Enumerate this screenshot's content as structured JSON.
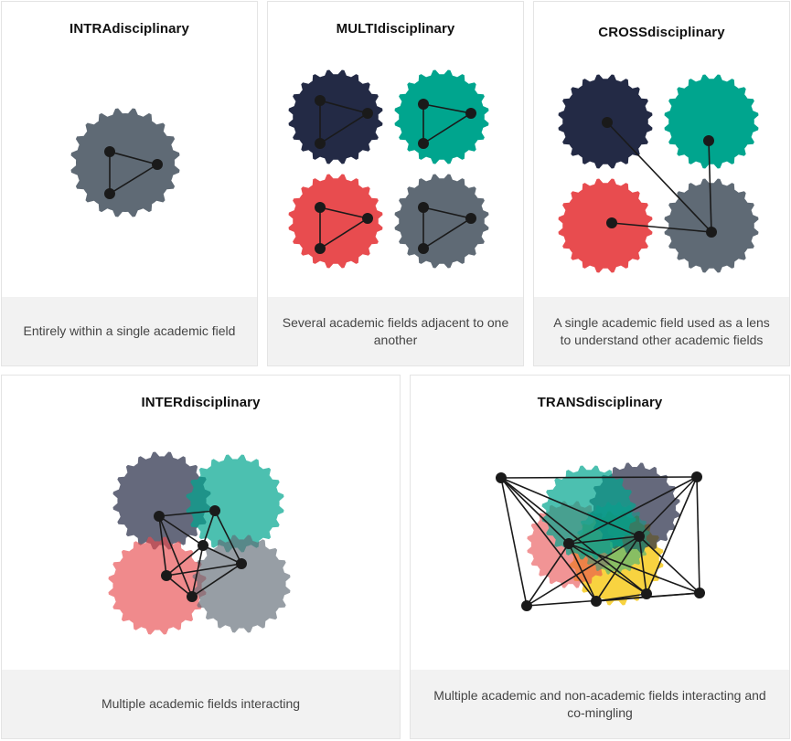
{
  "panels": {
    "intra": {
      "title_bold": "INTRA",
      "title_rest": "disciplinary",
      "caption": "Entirely within a single academic field"
    },
    "multi": {
      "title_bold": "MULTI",
      "title_rest": "disciplinary",
      "caption": "Several academic fields adjacent to one another"
    },
    "cross": {
      "title_bold": "CROSS",
      "title_rest": "disciplinary",
      "caption": "A single academic field used as a lens to understand other academic fields"
    },
    "inter": {
      "title_bold": "INTER",
      "title_rest": "disciplinary",
      "caption": "Multiple academic fields interacting"
    },
    "trans": {
      "title_bold": "TRANS",
      "title_rest": "disciplinary",
      "caption": "Multiple academic and non-academic fields interacting and co-mingling"
    }
  },
  "colors": {
    "gray": "#5f6a75",
    "navy": "#232a45",
    "teal": "#00a58e",
    "red": "#e84c4f",
    "yellow": "#f5c400",
    "node": "#1a1a1a",
    "footer_bg": "#f2f2f2"
  }
}
